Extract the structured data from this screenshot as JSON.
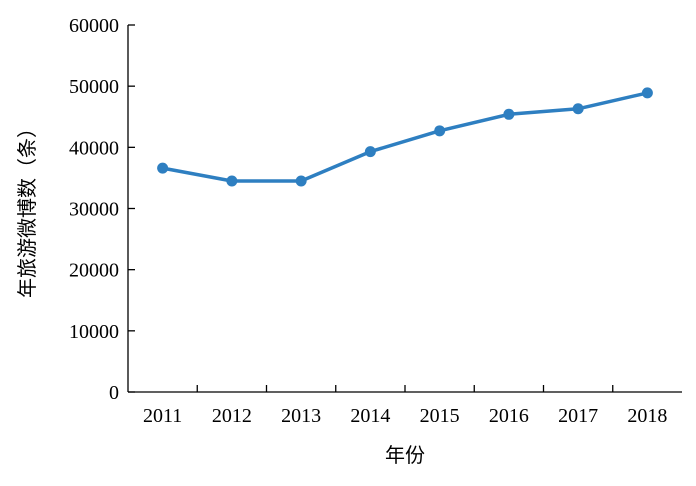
{
  "chart_data": {
    "type": "line",
    "title": "",
    "xlabel": "年份",
    "ylabel": "年旅游微博数（条）",
    "categories": [
      "2011",
      "2012",
      "2013",
      "2014",
      "2015",
      "2016",
      "2017",
      "2018"
    ],
    "series": [
      {
        "values": [
          36600,
          34500,
          34500,
          39300,
          42700,
          45400,
          46300,
          48900
        ],
        "color": "#2e7fc1"
      }
    ],
    "ylim": [
      0,
      60000
    ],
    "yticks": [
      "0",
      "10000",
      "20000",
      "30000",
      "40000",
      "50000",
      "60000"
    ],
    "grid": false,
    "markers": true
  }
}
